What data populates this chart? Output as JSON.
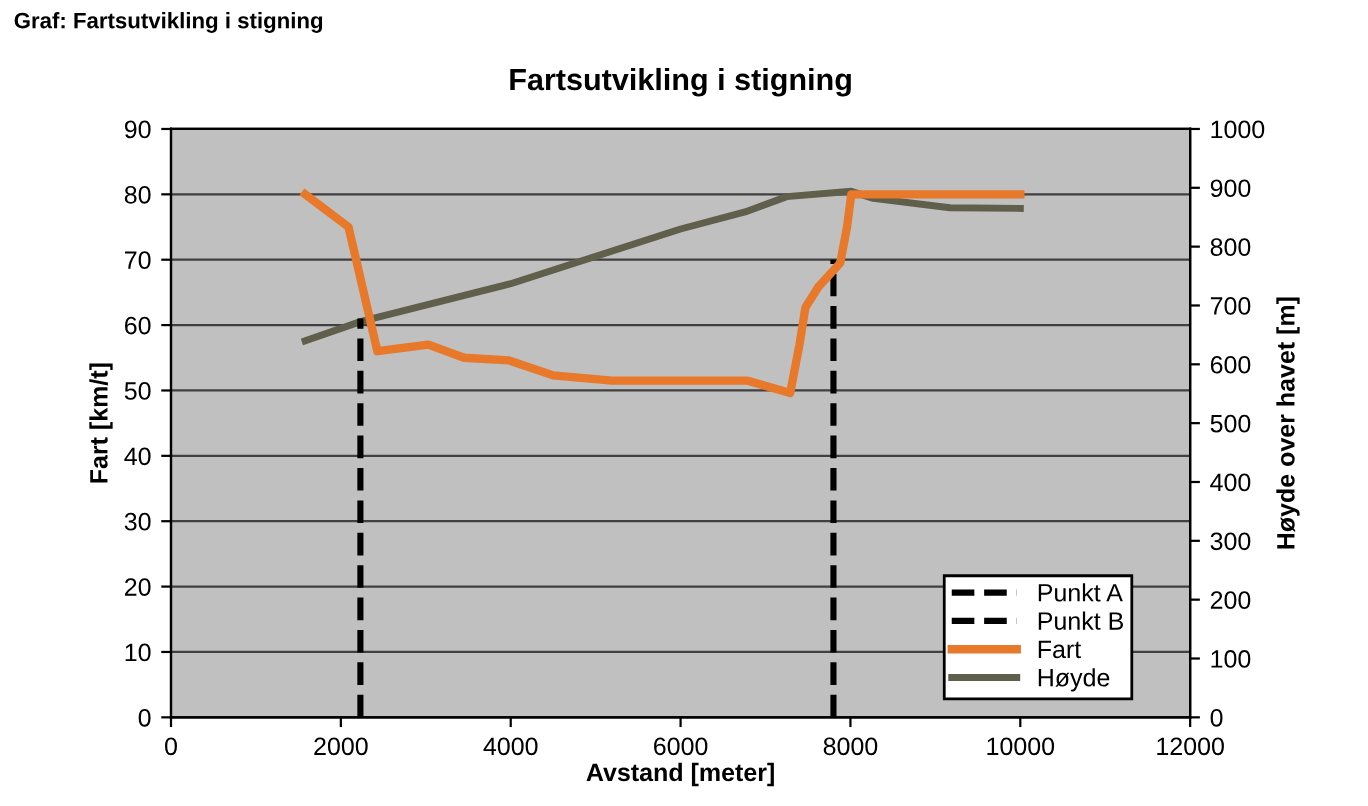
{
  "chart_data": {
    "type": "line",
    "title": "Fartsutvikling i stigning",
    "xlabel": "Avstand [meter]",
    "ylabel": "Fart [km/t]",
    "y2label": "Høyde over havet [m]",
    "annotations": [
      "Graf: Fartsutvikling i stigning"
    ],
    "xlim": [
      0,
      12000
    ],
    "xticks": [
      0,
      2000,
      4000,
      6000,
      8000,
      10000,
      12000
    ],
    "ylim": [
      0,
      90
    ],
    "yticks": [
      0,
      10,
      20,
      30,
      40,
      50,
      60,
      70,
      80,
      90
    ],
    "y2lim": [
      0,
      1000
    ],
    "y2ticks": [
      0,
      100,
      200,
      300,
      400,
      500,
      600,
      700,
      800,
      900,
      1000
    ],
    "grid": true,
    "legend": "bottom right",
    "marker": "none",
    "series": [
      {
        "name": "Punkt A",
        "color": "#000000",
        "line_style": "dashed",
        "x": [
          2230,
          2230
        ],
        "values": [
          0,
          61
        ]
      },
      {
        "name": "Punkt B",
        "color": "#000000",
        "line_style": "dashed",
        "x": [
          7800,
          7800
        ],
        "values": [
          0,
          70
        ]
      },
      {
        "name": "Fart",
        "color": "#e8782a",
        "line_style": "solid",
        "x": [
          1580,
          2090,
          2430,
          3030,
          3450,
          3980,
          4500,
          5190,
          6000,
          6790,
          7290,
          7400,
          7470,
          7620,
          7880,
          7960,
          8010,
          10000
        ],
        "values": [
          80,
          75,
          56,
          57,
          55,
          54.6,
          52.3,
          51.5,
          51.5,
          51.5,
          49.6,
          57,
          62.7,
          65.8,
          69.5,
          75,
          80,
          80
        ]
      },
      {
        "name": "Høyde",
        "color": "#5f5f4c",
        "line_style": "solid",
        "axis": "y2",
        "x": [
          1580,
          2240,
          4000,
          6000,
          6760,
          7250,
          8010,
          8270,
          9170,
          10000
        ],
        "values": [
          640,
          673,
          737,
          830,
          859,
          885,
          894,
          882,
          866,
          865
        ]
      }
    ]
  }
}
